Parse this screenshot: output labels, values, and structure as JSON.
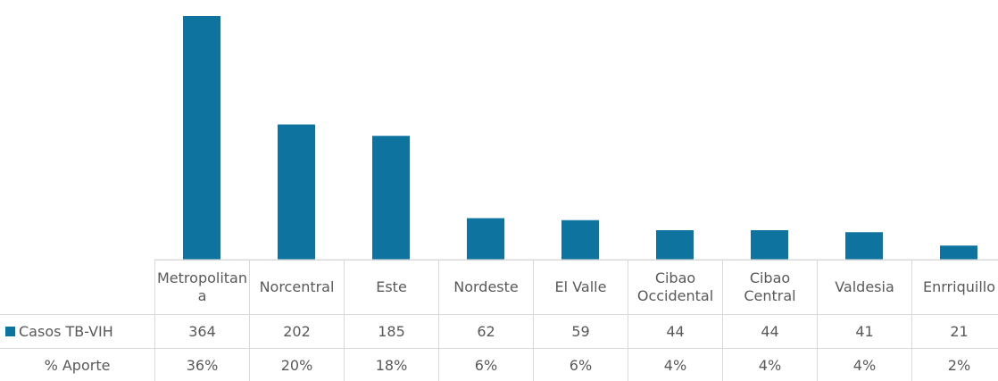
{
  "chart_data": {
    "type": "bar",
    "categories": [
      "Metropolitana",
      "Norcentral",
      "Este",
      "Nordeste",
      "El Valle",
      "Cibao Occidental",
      "Cibao Central",
      "Valdesia",
      "Enrriquillo"
    ],
    "series": [
      {
        "name": "Casos TB-VIH",
        "color": "#0f73a0",
        "values": [
          364,
          202,
          185,
          62,
          59,
          44,
          44,
          41,
          21
        ]
      },
      {
        "name": "% Aporte",
        "values": [
          36,
          20,
          18,
          6,
          6,
          4,
          4,
          4,
          2
        ],
        "value_labels": [
          "36%",
          "20%",
          "18%",
          "6%",
          "6%",
          "4%",
          "4%",
          "4%",
          "2%"
        ]
      }
    ]
  }
}
